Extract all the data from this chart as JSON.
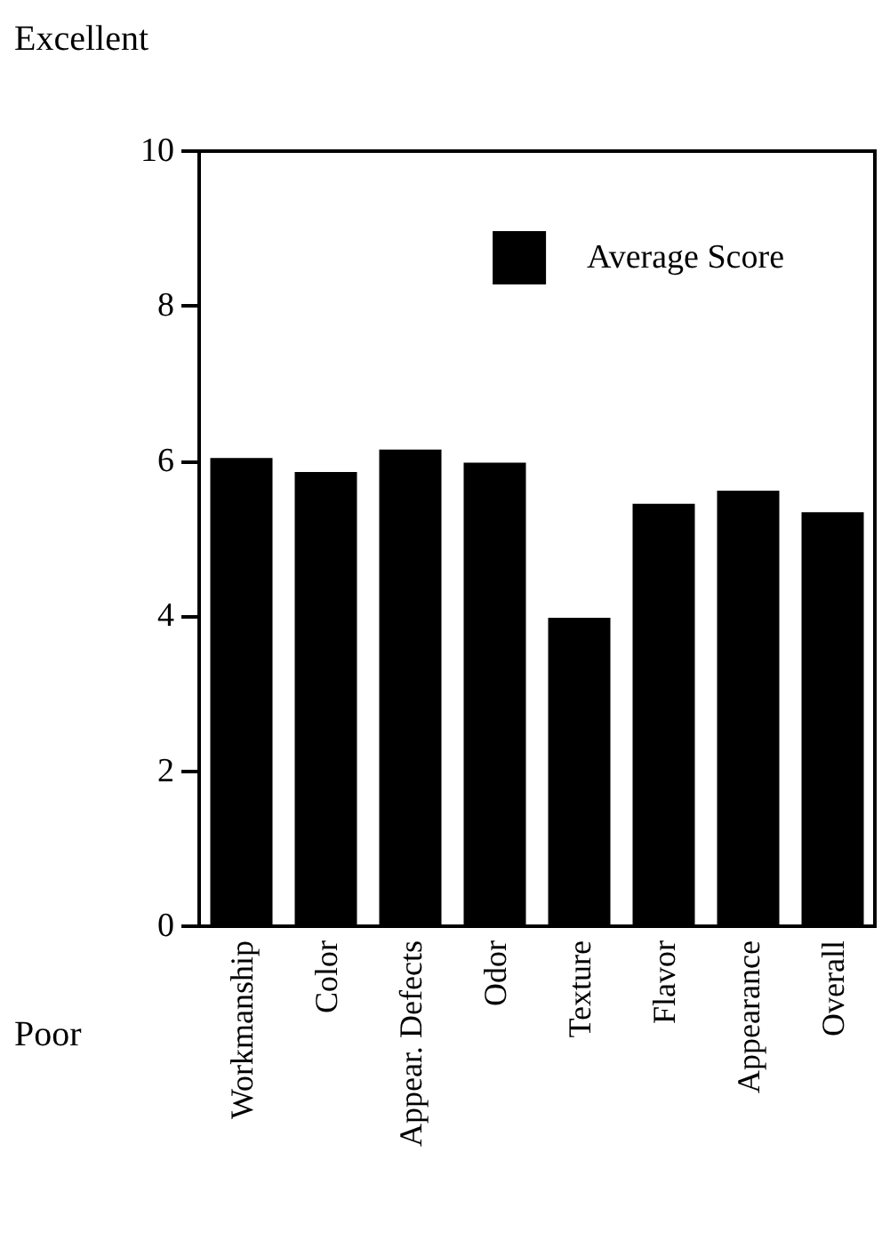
{
  "chart_data": {
    "type": "bar",
    "categories": [
      "Workmanship",
      "Color",
      "Appear. Defects",
      "Odor",
      "Texture",
      "Flavor",
      "Appearance",
      "Overall"
    ],
    "series": [
      {
        "name": "Average Score",
        "color": "#000000",
        "values": [
          6.04,
          5.86,
          6.15,
          5.98,
          3.98,
          5.45,
          5.62,
          5.34
        ]
      }
    ],
    "ylim": [
      0,
      10
    ],
    "yticks": [
      0,
      2,
      4,
      6,
      8,
      10
    ],
    "grid": false,
    "legend": "top right",
    "annotations": [
      "Excellent",
      "Poor"
    ]
  }
}
